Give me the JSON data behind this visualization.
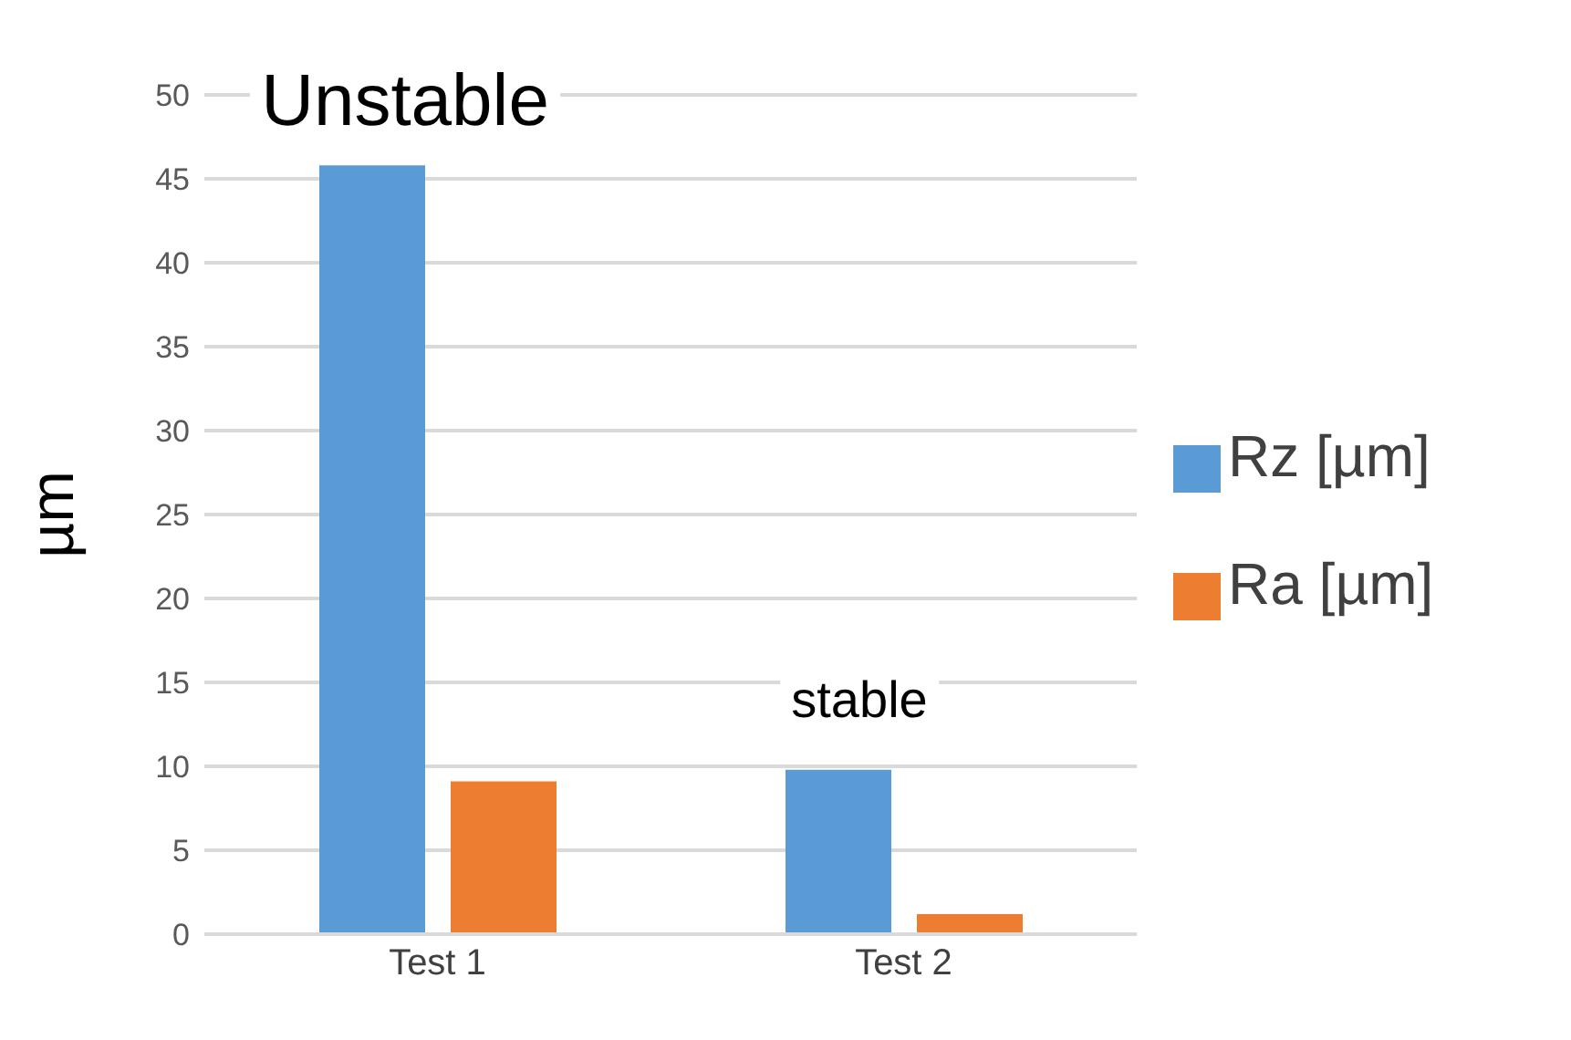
{
  "chart_data": {
    "type": "bar",
    "ylabel": "µm",
    "categories": [
      "Test 1",
      "Test 2"
    ],
    "series": [
      {
        "name": "Rz [µm]",
        "color": "#5b9bd5",
        "values": [
          45.8,
          9.8
        ]
      },
      {
        "name": "Ra [µm]",
        "color": "#ed7d31",
        "values": [
          9.1,
          1.2
        ]
      }
    ],
    "ylim": [
      0,
      50
    ],
    "yticks": [
      0,
      5,
      10,
      15,
      20,
      25,
      30,
      35,
      40,
      45,
      50
    ],
    "grid": "y",
    "legend": "right",
    "annotations": [
      "Unstable",
      "stable"
    ]
  }
}
